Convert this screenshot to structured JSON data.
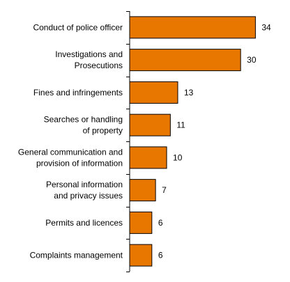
{
  "chart_data": {
    "type": "bar",
    "orientation": "horizontal",
    "title": "",
    "xlabel": "",
    "ylabel": "",
    "categories": [
      [
        "Conduct of police officer"
      ],
      [
        "Investigations and",
        "Prosecutions"
      ],
      [
        "Fines and infringements"
      ],
      [
        "Searches or handling",
        "of property"
      ],
      [
        "General communication and",
        "provision of information"
      ],
      [
        "Personal information",
        "and privacy issues"
      ],
      [
        "Permits and licences"
      ],
      [
        "Complaints management"
      ]
    ],
    "values": [
      34,
      30,
      13,
      11,
      10,
      7,
      6,
      6
    ],
    "xlim": [
      0,
      36
    ],
    "grid": false,
    "legend": "none",
    "bar_color": "#E87700",
    "bar_outline_color": "#000000"
  }
}
